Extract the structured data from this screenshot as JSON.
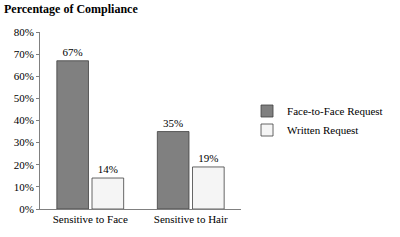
{
  "chart_data": {
    "type": "bar",
    "title": "Percentage of Compliance",
    "categories": [
      "Sensitive to Face",
      "Sensitive to Hair"
    ],
    "series": [
      {
        "name": "Face-to-Face Request",
        "color": "#808080",
        "values": [
          67,
          35
        ],
        "value_labels": [
          "67%",
          "35%"
        ]
      },
      {
        "name": "Written Request",
        "color": "#f5f5f5",
        "values": [
          14,
          19
        ],
        "value_labels": [
          "14%",
          "19%"
        ]
      }
    ],
    "ylim": [
      0,
      80
    ],
    "yticks": [
      {
        "value": 0,
        "label": "0%"
      },
      {
        "value": 10,
        "label": "10%"
      },
      {
        "value": 20,
        "label": "20%"
      },
      {
        "value": 30,
        "label": "30%"
      },
      {
        "value": 40,
        "label": "40%"
      },
      {
        "value": 50,
        "label": "50%"
      },
      {
        "value": 60,
        "label": "60%"
      },
      {
        "value": 70,
        "label": "70%"
      },
      {
        "value": 80,
        "label": "80%"
      }
    ],
    "grid": false,
    "data_labels": true,
    "legend": "right"
  }
}
